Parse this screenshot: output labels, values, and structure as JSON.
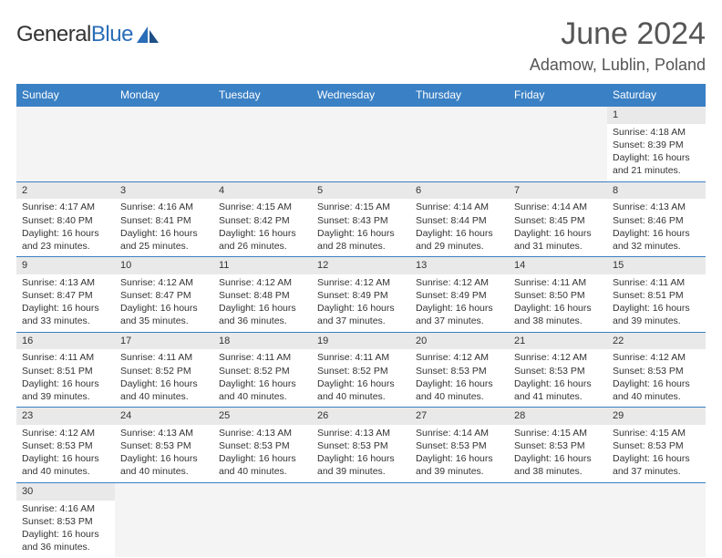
{
  "logo": {
    "main": "General",
    "sub": "Blue"
  },
  "title": "June 2024",
  "location": "Adamow, Lublin, Poland",
  "colors": {
    "header_bg": "#3a80c4",
    "header_text": "#ffffff",
    "daynum_bg": "#e9e9e9",
    "border": "#3a80c4",
    "logo_blue": "#2a6db8"
  },
  "day_headers": [
    "Sunday",
    "Monday",
    "Tuesday",
    "Wednesday",
    "Thursday",
    "Friday",
    "Saturday"
  ],
  "weeks": [
    [
      {
        "n": "",
        "sr": "",
        "ss": "",
        "dl": ""
      },
      {
        "n": "",
        "sr": "",
        "ss": "",
        "dl": ""
      },
      {
        "n": "",
        "sr": "",
        "ss": "",
        "dl": ""
      },
      {
        "n": "",
        "sr": "",
        "ss": "",
        "dl": ""
      },
      {
        "n": "",
        "sr": "",
        "ss": "",
        "dl": ""
      },
      {
        "n": "",
        "sr": "",
        "ss": "",
        "dl": ""
      },
      {
        "n": "1",
        "sr": "Sunrise: 4:18 AM",
        "ss": "Sunset: 8:39 PM",
        "dl": "Daylight: 16 hours and 21 minutes."
      }
    ],
    [
      {
        "n": "2",
        "sr": "Sunrise: 4:17 AM",
        "ss": "Sunset: 8:40 PM",
        "dl": "Daylight: 16 hours and 23 minutes."
      },
      {
        "n": "3",
        "sr": "Sunrise: 4:16 AM",
        "ss": "Sunset: 8:41 PM",
        "dl": "Daylight: 16 hours and 25 minutes."
      },
      {
        "n": "4",
        "sr": "Sunrise: 4:15 AM",
        "ss": "Sunset: 8:42 PM",
        "dl": "Daylight: 16 hours and 26 minutes."
      },
      {
        "n": "5",
        "sr": "Sunrise: 4:15 AM",
        "ss": "Sunset: 8:43 PM",
        "dl": "Daylight: 16 hours and 28 minutes."
      },
      {
        "n": "6",
        "sr": "Sunrise: 4:14 AM",
        "ss": "Sunset: 8:44 PM",
        "dl": "Daylight: 16 hours and 29 minutes."
      },
      {
        "n": "7",
        "sr": "Sunrise: 4:14 AM",
        "ss": "Sunset: 8:45 PM",
        "dl": "Daylight: 16 hours and 31 minutes."
      },
      {
        "n": "8",
        "sr": "Sunrise: 4:13 AM",
        "ss": "Sunset: 8:46 PM",
        "dl": "Daylight: 16 hours and 32 minutes."
      }
    ],
    [
      {
        "n": "9",
        "sr": "Sunrise: 4:13 AM",
        "ss": "Sunset: 8:47 PM",
        "dl": "Daylight: 16 hours and 33 minutes."
      },
      {
        "n": "10",
        "sr": "Sunrise: 4:12 AM",
        "ss": "Sunset: 8:47 PM",
        "dl": "Daylight: 16 hours and 35 minutes."
      },
      {
        "n": "11",
        "sr": "Sunrise: 4:12 AM",
        "ss": "Sunset: 8:48 PM",
        "dl": "Daylight: 16 hours and 36 minutes."
      },
      {
        "n": "12",
        "sr": "Sunrise: 4:12 AM",
        "ss": "Sunset: 8:49 PM",
        "dl": "Daylight: 16 hours and 37 minutes."
      },
      {
        "n": "13",
        "sr": "Sunrise: 4:12 AM",
        "ss": "Sunset: 8:49 PM",
        "dl": "Daylight: 16 hours and 37 minutes."
      },
      {
        "n": "14",
        "sr": "Sunrise: 4:11 AM",
        "ss": "Sunset: 8:50 PM",
        "dl": "Daylight: 16 hours and 38 minutes."
      },
      {
        "n": "15",
        "sr": "Sunrise: 4:11 AM",
        "ss": "Sunset: 8:51 PM",
        "dl": "Daylight: 16 hours and 39 minutes."
      }
    ],
    [
      {
        "n": "16",
        "sr": "Sunrise: 4:11 AM",
        "ss": "Sunset: 8:51 PM",
        "dl": "Daylight: 16 hours and 39 minutes."
      },
      {
        "n": "17",
        "sr": "Sunrise: 4:11 AM",
        "ss": "Sunset: 8:52 PM",
        "dl": "Daylight: 16 hours and 40 minutes."
      },
      {
        "n": "18",
        "sr": "Sunrise: 4:11 AM",
        "ss": "Sunset: 8:52 PM",
        "dl": "Daylight: 16 hours and 40 minutes."
      },
      {
        "n": "19",
        "sr": "Sunrise: 4:11 AM",
        "ss": "Sunset: 8:52 PM",
        "dl": "Daylight: 16 hours and 40 minutes."
      },
      {
        "n": "20",
        "sr": "Sunrise: 4:12 AM",
        "ss": "Sunset: 8:53 PM",
        "dl": "Daylight: 16 hours and 40 minutes."
      },
      {
        "n": "21",
        "sr": "Sunrise: 4:12 AM",
        "ss": "Sunset: 8:53 PM",
        "dl": "Daylight: 16 hours and 41 minutes."
      },
      {
        "n": "22",
        "sr": "Sunrise: 4:12 AM",
        "ss": "Sunset: 8:53 PM",
        "dl": "Daylight: 16 hours and 40 minutes."
      }
    ],
    [
      {
        "n": "23",
        "sr": "Sunrise: 4:12 AM",
        "ss": "Sunset: 8:53 PM",
        "dl": "Daylight: 16 hours and 40 minutes."
      },
      {
        "n": "24",
        "sr": "Sunrise: 4:13 AM",
        "ss": "Sunset: 8:53 PM",
        "dl": "Daylight: 16 hours and 40 minutes."
      },
      {
        "n": "25",
        "sr": "Sunrise: 4:13 AM",
        "ss": "Sunset: 8:53 PM",
        "dl": "Daylight: 16 hours and 40 minutes."
      },
      {
        "n": "26",
        "sr": "Sunrise: 4:13 AM",
        "ss": "Sunset: 8:53 PM",
        "dl": "Daylight: 16 hours and 39 minutes."
      },
      {
        "n": "27",
        "sr": "Sunrise: 4:14 AM",
        "ss": "Sunset: 8:53 PM",
        "dl": "Daylight: 16 hours and 39 minutes."
      },
      {
        "n": "28",
        "sr": "Sunrise: 4:15 AM",
        "ss": "Sunset: 8:53 PM",
        "dl": "Daylight: 16 hours and 38 minutes."
      },
      {
        "n": "29",
        "sr": "Sunrise: 4:15 AM",
        "ss": "Sunset: 8:53 PM",
        "dl": "Daylight: 16 hours and 37 minutes."
      }
    ],
    [
      {
        "n": "30",
        "sr": "Sunrise: 4:16 AM",
        "ss": "Sunset: 8:53 PM",
        "dl": "Daylight: 16 hours and 36 minutes."
      },
      {
        "n": "",
        "sr": "",
        "ss": "",
        "dl": ""
      },
      {
        "n": "",
        "sr": "",
        "ss": "",
        "dl": ""
      },
      {
        "n": "",
        "sr": "",
        "ss": "",
        "dl": ""
      },
      {
        "n": "",
        "sr": "",
        "ss": "",
        "dl": ""
      },
      {
        "n": "",
        "sr": "",
        "ss": "",
        "dl": ""
      },
      {
        "n": "",
        "sr": "",
        "ss": "",
        "dl": ""
      }
    ]
  ]
}
